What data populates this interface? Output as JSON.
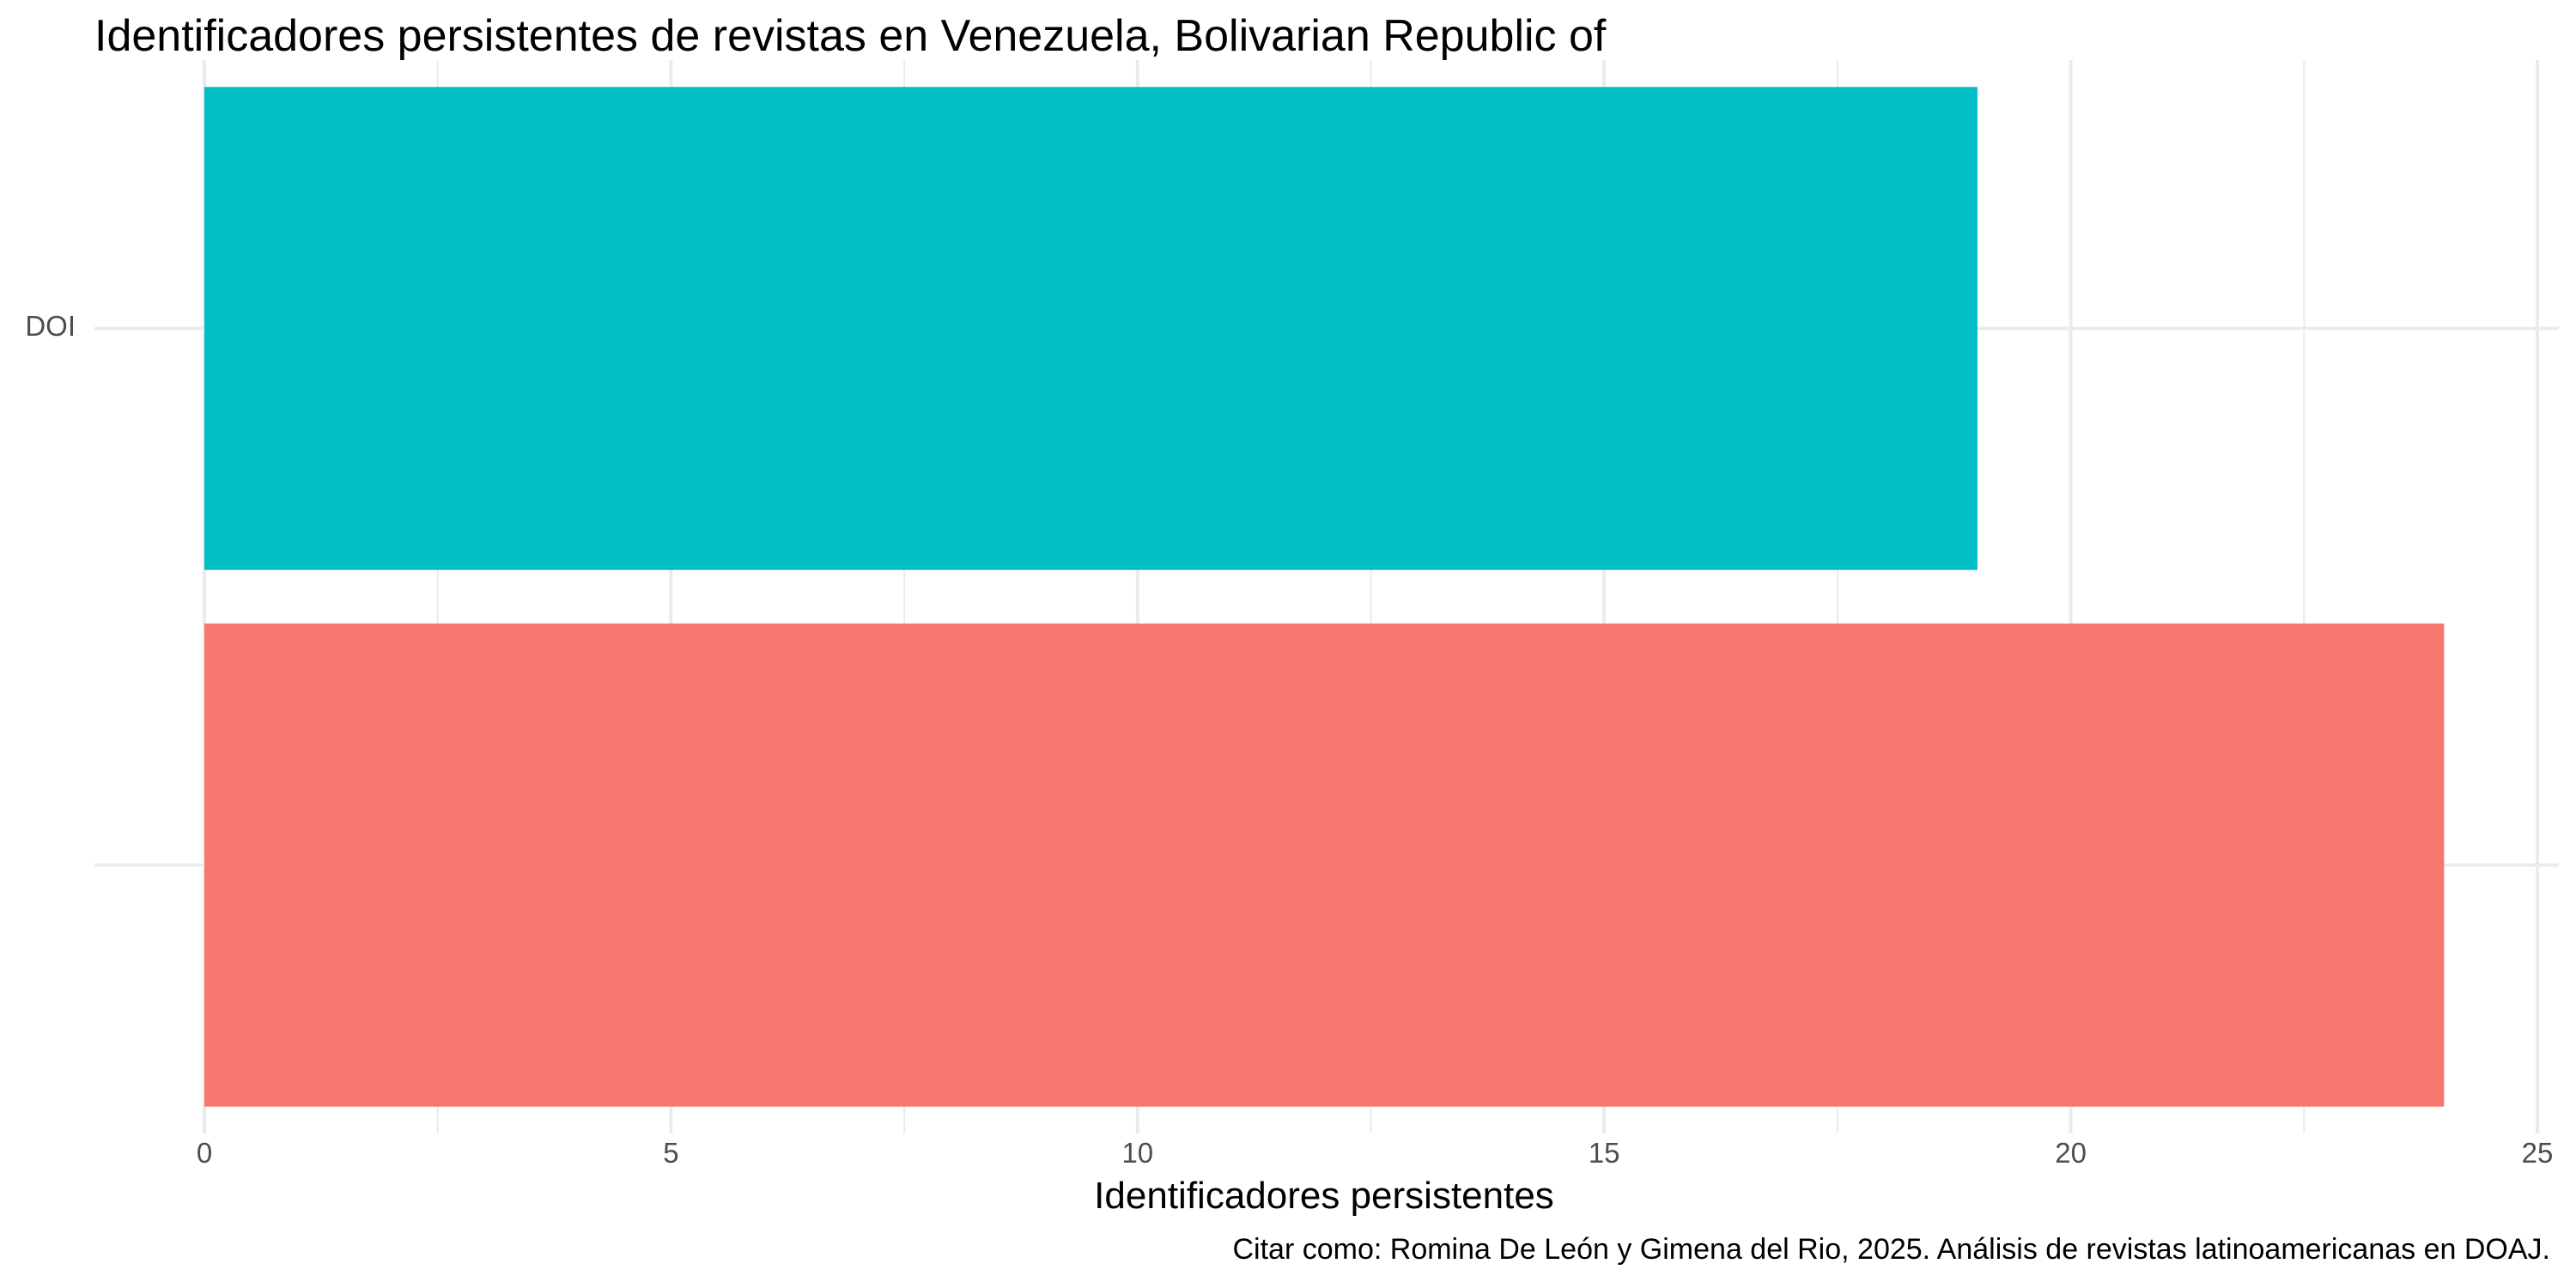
{
  "chart_data": {
    "type": "bar",
    "orientation": "horizontal",
    "title": "Identificadores persistentes de revistas en Venezuela, Bolivarian Republic of",
    "xlabel": "Identificadores persistentes",
    "ylabel": "",
    "categories": [
      "DOI",
      ""
    ],
    "values": [
      19,
      24
    ],
    "colors": [
      "#00BFC4",
      "#F8766D"
    ],
    "xlim": [
      0,
      25
    ],
    "x_ticks": [
      0,
      5,
      10,
      15,
      20,
      25
    ],
    "grid": true,
    "legend": "none",
    "caption": "Citar como: Romina De León y Gimena del Rio, 2025. Análisis de revistas latinoamericanas en DOAJ."
  }
}
